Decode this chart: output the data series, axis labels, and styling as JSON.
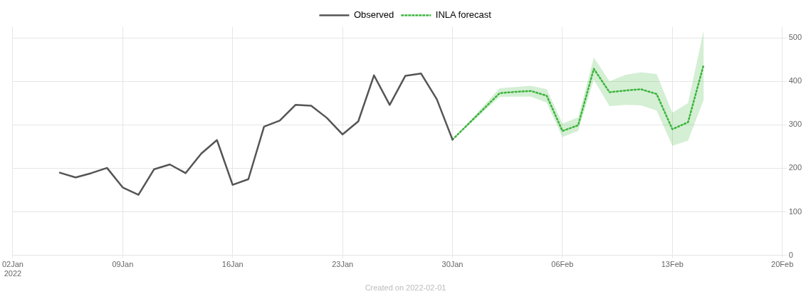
{
  "chart_data": {
    "type": "line",
    "legend": "top",
    "grid": true,
    "marker": "none",
    "xlim": [
      "2022-01-02",
      "2022-02-20"
    ],
    "xticks": [
      {
        "value": "2022-01-02",
        "label": "02Jan\n2022"
      },
      {
        "value": "2022-01-09",
        "label": "09Jan"
      },
      {
        "value": "2022-01-16",
        "label": "16Jan"
      },
      {
        "value": "2022-01-23",
        "label": "23Jan"
      },
      {
        "value": "2022-01-30",
        "label": "30Jan"
      },
      {
        "value": "2022-02-06",
        "label": "06Feb"
      },
      {
        "value": "2022-02-13",
        "label": "13Feb"
      },
      {
        "value": "2022-02-20",
        "label": "20Feb"
      }
    ],
    "ylim": [
      0,
      525
    ],
    "yticks": [
      0,
      100,
      200,
      300,
      400,
      500
    ],
    "annotations": [
      "Created on 2022-02-01"
    ],
    "series": [
      {
        "name": "Observed",
        "color": "#555555",
        "line_style": "solid",
        "x": [
          "2022-01-05",
          "2022-01-06",
          "2022-01-07",
          "2022-01-08",
          "2022-01-09",
          "2022-01-10",
          "2022-01-11",
          "2022-01-12",
          "2022-01-13",
          "2022-01-14",
          "2022-01-15",
          "2022-01-16",
          "2022-01-17",
          "2022-01-18",
          "2022-01-19",
          "2022-01-20",
          "2022-01-21",
          "2022-01-22",
          "2022-01-23",
          "2022-01-24",
          "2022-01-25",
          "2022-01-26",
          "2022-01-27",
          "2022-01-28",
          "2022-01-29",
          "2022-01-30"
        ],
        "values": [
          190,
          179,
          189,
          201,
          156,
          139,
          198,
          209,
          189,
          234,
          265,
          162,
          175,
          296,
          310,
          346,
          344,
          316,
          278,
          308,
          414,
          346,
          413,
          418,
          359,
          266
        ]
      },
      {
        "name": "INLA forecast",
        "color": "#3cb43c",
        "line_style": "dotted",
        "x": [
          "2022-01-30",
          "2022-02-02",
          "2022-02-03",
          "2022-02-04",
          "2022-02-05",
          "2022-02-06",
          "2022-02-07",
          "2022-02-08",
          "2022-02-09",
          "2022-02-10",
          "2022-02-11",
          "2022-02-12",
          "2022-02-13",
          "2022-02-14",
          "2022-02-15"
        ],
        "values": [
          266,
          373,
          376,
          378,
          367,
          286,
          299,
          429,
          375,
          379,
          382,
          371,
          290,
          306,
          439
        ],
        "lower": [
          266,
          364,
          365,
          365,
          351,
          272,
          286,
          404,
          343,
          346,
          345,
          333,
          252,
          264,
          358
        ],
        "upper": [
          266,
          384,
          387,
          390,
          382,
          303,
          317,
          455,
          400,
          415,
          421,
          417,
          328,
          350,
          519
        ]
      }
    ]
  }
}
